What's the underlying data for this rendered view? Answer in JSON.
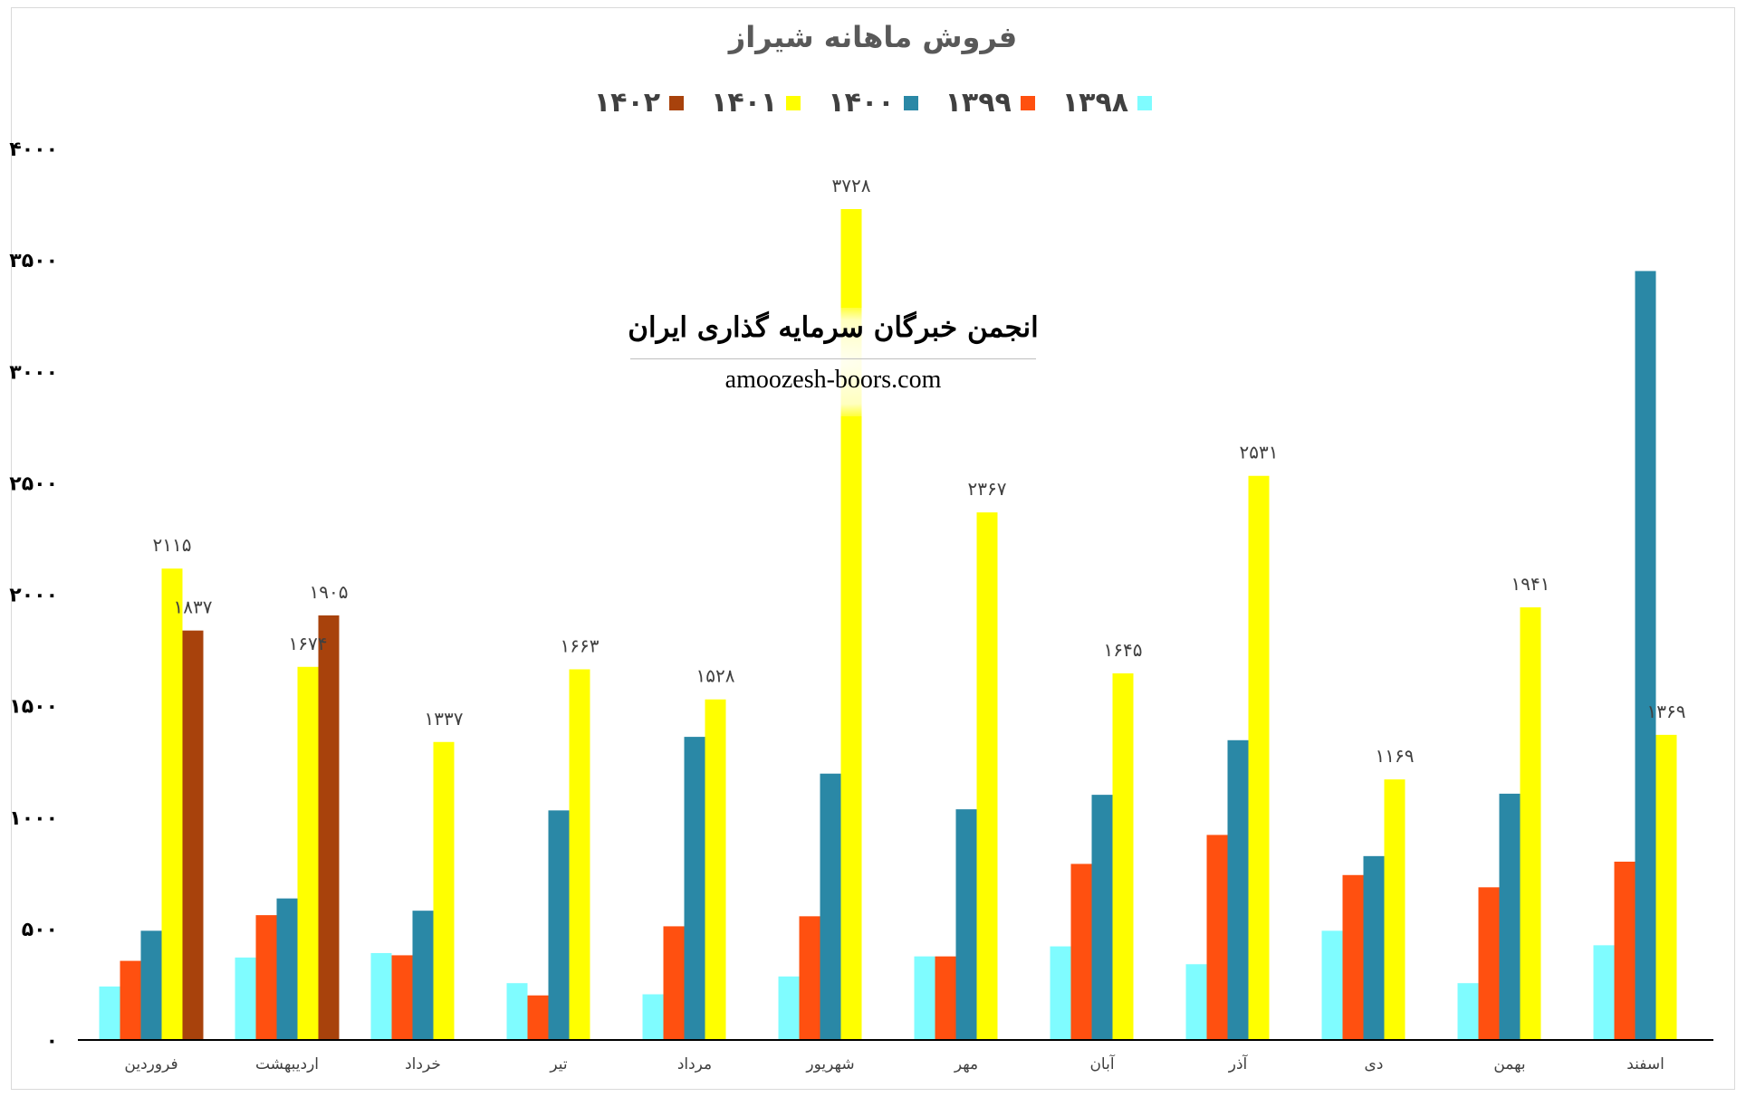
{
  "chart_data": {
    "type": "bar",
    "title": "فروش ماهانه شیراز",
    "categories": [
      "فروردین",
      "اردیبهشت",
      "خرداد",
      "تیر",
      "مرداد",
      "شهریور",
      "مهر",
      "آبان",
      "آذر",
      "دی",
      "بهمن",
      "اسفند"
    ],
    "series": [
      {
        "name": "۱۳۹۸",
        "color": "#7ffcff",
        "values": [
          240,
          370,
          390,
          255,
          205,
          285,
          375,
          420,
          340,
          490,
          255,
          425
        ]
      },
      {
        "name": "۱۳۹۹",
        "color": "#ff5010",
        "values": [
          355,
          560,
          380,
          200,
          510,
          555,
          375,
          790,
          920,
          740,
          685,
          800
        ]
      },
      {
        "name": "۱۴۰۰",
        "color": "#2a88a6",
        "values": [
          490,
          635,
          580,
          1030,
          1360,
          1195,
          1035,
          1100,
          1345,
          825,
          1105,
          3450
        ]
      },
      {
        "name": "۱۴۰۱",
        "color": "#ffff00",
        "values": [
          2115,
          1674,
          1337,
          1663,
          1528,
          3728,
          2367,
          1645,
          2531,
          1169,
          1941,
          1369
        ]
      },
      {
        "name": "۱۴۰۲",
        "color": "#a8420c",
        "values": [
          1837,
          1905,
          null,
          null,
          null,
          null,
          null,
          null,
          null,
          null,
          null,
          null
        ]
      }
    ],
    "value_labels": [
      {
        "series": "۱۴۰۱",
        "labels": [
          "۲۱۱۵",
          "۱۶۷۴",
          "۱۳۳۷",
          "۱۶۶۳",
          "۱۵۲۸",
          "۳۷۲۸",
          "۲۳۶۷",
          "۱۶۴۵",
          "۲۵۳۱",
          "۱۱۶۹",
          "۱۹۴۱",
          "۱۳۶۹"
        ]
      },
      {
        "series": "۱۴۰۲",
        "labels": [
          "۱۸۳۷",
          "۱۹۰۵",
          null,
          null,
          null,
          null,
          null,
          null,
          null,
          null,
          null,
          null
        ]
      }
    ],
    "y_ticks": [
      0,
      500,
      1000,
      1500,
      2000,
      2500,
      3000,
      3500,
      4000
    ],
    "y_tick_labels": [
      "۰",
      "۵۰۰",
      "۱۰۰۰",
      "۱۵۰۰",
      "۲۰۰۰",
      "۲۵۰۰",
      "۳۰۰۰",
      "۳۵۰۰",
      "۴۰۰۰"
    ],
    "ylim": [
      0,
      4000
    ],
    "grid": false,
    "legend_position": "top"
  },
  "watermark": {
    "title": "انجمن خبرگان سرمایه گذاری ایران",
    "url": "amoozesh-boors.com"
  }
}
